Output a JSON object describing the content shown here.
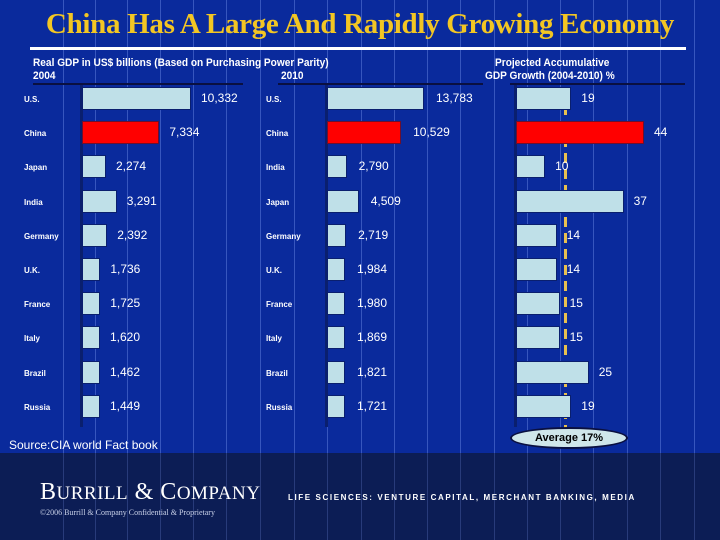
{
  "title": "China Has A Large And Rapidly Growing Economy",
  "subheads": {
    "gdp_title": "Real GDP in US$ billions (Based on Purchasing Power Parity)",
    "year_2004": "2004",
    "year_2010": "2010",
    "growth_title_line1": "Projected Accumulative",
    "growth_title_line2": "GDP Growth (2004-2010) %"
  },
  "colors": {
    "background": "#0a2a9c",
    "bar": "#bfe0e8",
    "highlight_bar": "#ff0000",
    "title": "#f3c623",
    "average_line": "#e8c050"
  },
  "chart_data": [
    {
      "type": "bar",
      "orientation": "horizontal",
      "title": "Real GDP in US$ billions (Based on Purchasing Power Parity) 2004",
      "categories": [
        "U.S.",
        "China",
        "Japan",
        "India",
        "Germany",
        "U.K.",
        "France",
        "Italy",
        "Brazil",
        "Russia"
      ],
      "values": [
        10332,
        7334,
        2274,
        3291,
        2392,
        1736,
        1725,
        1620,
        1462,
        1449
      ],
      "value_labels": [
        "10,332",
        "7,334",
        "2,274",
        "3,291",
        "2,392",
        "1,736",
        "1,725",
        "1,620",
        "1,462",
        "1,449"
      ],
      "highlight": "China",
      "xlim": [
        0,
        10332
      ]
    },
    {
      "type": "bar",
      "orientation": "horizontal",
      "title": "2010",
      "categories": [
        "U.S.",
        "China",
        "India",
        "Japan",
        "Germany",
        "U.K.",
        "France",
        "Italy",
        "Brazil",
        "Russia"
      ],
      "values": [
        13783,
        10529,
        2790,
        4509,
        2719,
        1984,
        1980,
        1869,
        1821,
        1721
      ],
      "value_labels": [
        "13,783",
        "10,529",
        "2,790",
        "4,509",
        "2,719",
        "1,984",
        "1,980",
        "1,869",
        "1,821",
        "1,721"
      ],
      "highlight": "China",
      "xlim": [
        0,
        13783
      ]
    },
    {
      "type": "bar",
      "orientation": "horizontal",
      "title": "Projected Accumulative GDP Growth (2004-2010) %",
      "categories": [
        "U.S.",
        "China",
        "India",
        "Japan",
        "Germany",
        "U.K.",
        "France",
        "Italy",
        "Brazil",
        "Russia"
      ],
      "values": [
        19,
        44,
        10,
        37,
        14,
        14,
        15,
        15,
        25,
        19
      ],
      "value_labels": [
        "19",
        "44",
        "10",
        "37",
        "14",
        "14",
        "15",
        "15",
        "25",
        "19"
      ],
      "highlight": "China",
      "reference_line": {
        "value": 17,
        "label": "Average 17%"
      },
      "xlim": [
        0,
        44
      ]
    }
  ],
  "source": "Source:CIA world Fact book",
  "footer": {
    "brand_b": "B",
    "brand_urrill": "URRILL",
    "brand_amp": " & ",
    "brand_c": "C",
    "brand_ompany": "OMPANY",
    "copyright": "©2006 Burrill & Company Confidential & Proprietary",
    "tagline": "LIFE SCIENCES: VENTURE CAPITAL, MERCHANT BANKING, MEDIA"
  }
}
